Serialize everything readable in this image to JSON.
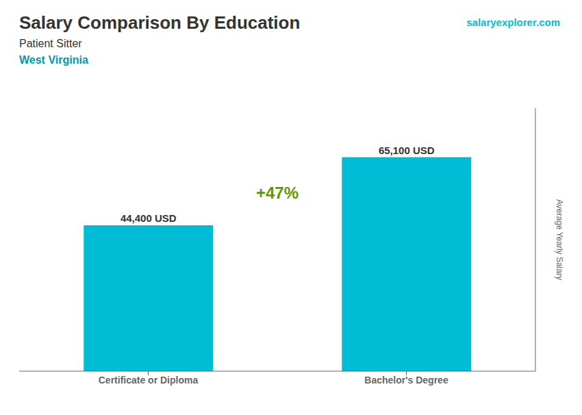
{
  "chart_data": {
    "type": "bar",
    "title": "Salary Comparison By Education",
    "subtitle": [
      "Patient Sitter",
      "West Virginia"
    ],
    "ylabel": "Average Yearly Salary",
    "annotations": [
      "+47%",
      "salaryexplorer.com"
    ],
    "categories": [
      "Certificate or Diploma",
      "Bachelor's Degree"
    ],
    "values": [
      44400,
      65100
    ],
    "value_labels": [
      "44,400 USD",
      "65,100 USD"
    ],
    "data_labels": true,
    "color": "#00bcd4",
    "ylim": [
      0,
      80000
    ],
    "yticks": [],
    "grid": false,
    "tick_labels": "x"
  }
}
